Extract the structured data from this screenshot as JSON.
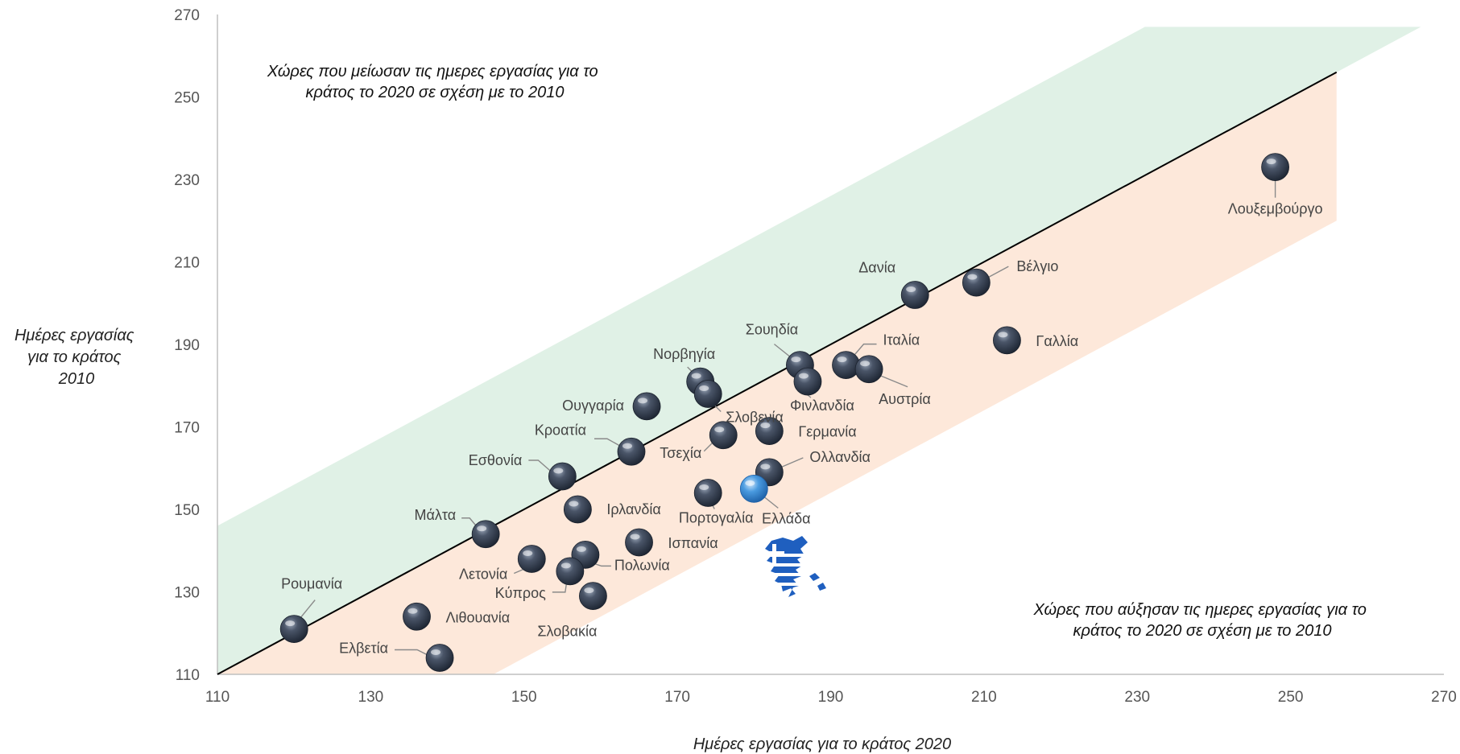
{
  "chart_data": {
    "type": "scatter",
    "xlabel": "Ημέρες εργασίας για το κράτος 2020",
    "ylabel_lines": [
      "Ημέρες εργασίας",
      "για το κράτος",
      "2010"
    ],
    "xlim": [
      110,
      270
    ],
    "ylim": [
      110,
      270
    ],
    "x_ticks": [
      "110",
      "130",
      "150",
      "170",
      "190",
      "210",
      "230",
      "250",
      "270"
    ],
    "y_ticks": [
      "110",
      "130",
      "150",
      "170",
      "190",
      "210",
      "230",
      "250",
      "270"
    ],
    "grid": false,
    "reference_line": "y = x",
    "annotations": {
      "decreased_lines": [
        "Χώρες που μείωσαν τις ημερες εργασίας για το",
        "κράτος το 2020 σε σχέση με το 2010"
      ],
      "increased_lines": [
        "Χώρες που αύξησαν τις ημερες εργασίας για το",
        "κράτος το 2020 σε σχέση με το 2010"
      ]
    },
    "colors": {
      "decreased_band": "#e0f1e6",
      "increased_band": "#fde8da",
      "marker": "#2e3a4c",
      "highlight_marker": "#3d8fd8",
      "diagonal": "#000000"
    },
    "highlight": "Ελλάδα",
    "points": [
      {
        "label": "Λουξεμβούργο",
        "x": 248,
        "y": 233
      },
      {
        "label": "Βέλγιο",
        "x": 209,
        "y": 205
      },
      {
        "label": "Δανία",
        "x": 201,
        "y": 202
      },
      {
        "label": "Γαλλία",
        "x": 213,
        "y": 191
      },
      {
        "label": "Ιταλία",
        "x": 192,
        "y": 185
      },
      {
        "label": "Αυστρία",
        "x": 195,
        "y": 184
      },
      {
        "label": "Σουηδία",
        "x": 186,
        "y": 185
      },
      {
        "label": "Φινλανδία",
        "x": 187,
        "y": 181
      },
      {
        "label": "Νορβηγία",
        "x": 173,
        "y": 181
      },
      {
        "label": "Σλοβενία",
        "x": 174,
        "y": 178
      },
      {
        "label": "Ουγγαρία",
        "x": 166,
        "y": 175
      },
      {
        "label": "Γερμανία",
        "x": 182,
        "y": 169
      },
      {
        "label": "Τσεχία",
        "x": 176,
        "y": 168
      },
      {
        "label": "Κροατία",
        "x": 164,
        "y": 164
      },
      {
        "label": "Ολλανδία",
        "x": 182,
        "y": 159
      },
      {
        "label": "Εσθονία",
        "x": 155,
        "y": 158
      },
      {
        "label": "Πορτογαλία",
        "x": 174,
        "y": 154
      },
      {
        "label": "Ελλάδα",
        "x": 180,
        "y": 155
      },
      {
        "label": "Ιρλανδία",
        "x": 157,
        "y": 150
      },
      {
        "label": "Μάλτα",
        "x": 145,
        "y": 144
      },
      {
        "label": "Ισπανία",
        "x": 165,
        "y": 142
      },
      {
        "label": "Πολωνία",
        "x": 158,
        "y": 139
      },
      {
        "label": "Λετονία",
        "x": 151,
        "y": 138
      },
      {
        "label": "Κύπρος",
        "x": 156,
        "y": 135
      },
      {
        "label": "Σλοβακία",
        "x": 159,
        "y": 129
      },
      {
        "label": "Λιθουανία",
        "x": 136,
        "y": 124
      },
      {
        "label": "Ρουμανία",
        "x": 120,
        "y": 121
      },
      {
        "label": "Ελβετία",
        "x": 139,
        "y": 114
      }
    ]
  }
}
